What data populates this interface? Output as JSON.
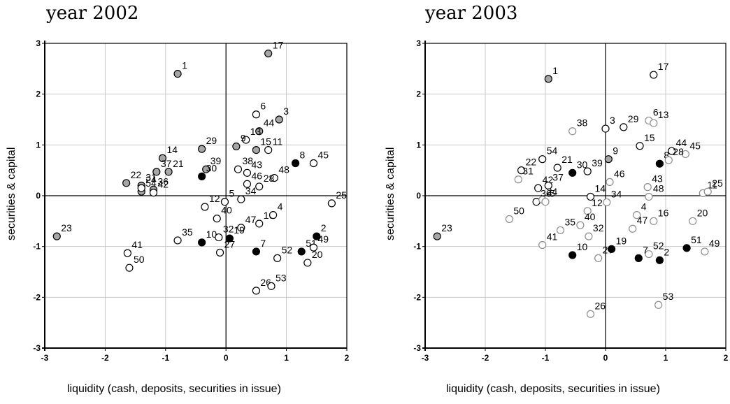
{
  "chart_data": [
    {
      "type": "scatter",
      "title": "year 2002",
      "xlabel": "liquidity (cash, deposits, securities in issue)",
      "ylabel": "securities & capital",
      "xlim": [
        -3,
        2
      ],
      "ylim": [
        -3,
        3
      ],
      "x_ticks": [
        "-3",
        "-2",
        "-1",
        "0",
        "1",
        "2"
      ],
      "y_ticks": [
        "3",
        "2",
        "1",
        "0",
        "-1",
        "-2",
        "-3"
      ],
      "grid": true,
      "colors": {
        "black": "#000000",
        "gray": "#a6a6a6",
        "white": "#ffffff"
      },
      "points": [
        {
          "label": "1",
          "x": -0.8,
          "y": 2.4,
          "fill": "gray"
        },
        {
          "label": "17",
          "x": 0.7,
          "y": 2.8,
          "fill": "gray"
        },
        {
          "label": "6",
          "x": 0.5,
          "y": 1.6,
          "fill": "white"
        },
        {
          "label": "3",
          "x": 0.88,
          "y": 1.5,
          "fill": "gray"
        },
        {
          "label": "44",
          "x": 0.55,
          "y": 1.27,
          "fill": "gray"
        },
        {
          "label": "13",
          "x": 0.33,
          "y": 1.1,
          "fill": "white"
        },
        {
          "label": "9",
          "x": 0.17,
          "y": 0.97,
          "fill": "gray"
        },
        {
          "label": "15",
          "x": 0.5,
          "y": 0.9,
          "fill": "gray"
        },
        {
          "label": "11",
          "x": 0.7,
          "y": 0.9,
          "fill": "white"
        },
        {
          "label": "8",
          "x": 1.15,
          "y": 0.64,
          "fill": "black"
        },
        {
          "label": "45",
          "x": 1.45,
          "y": 0.64,
          "fill": "white"
        },
        {
          "label": "38",
          "x": 0.2,
          "y": 0.52,
          "fill": "white"
        },
        {
          "label": "43",
          "x": 0.35,
          "y": 0.45,
          "fill": "white"
        },
        {
          "label": "48",
          "x": 0.8,
          "y": 0.35,
          "fill": "white"
        },
        {
          "label": "46",
          "x": 0.35,
          "y": 0.23,
          "fill": "white"
        },
        {
          "label": "28",
          "x": 0.55,
          "y": 0.18,
          "fill": "white"
        },
        {
          "label": "29",
          "x": -0.4,
          "y": 0.92,
          "fill": "gray"
        },
        {
          "label": "14",
          "x": -1.05,
          "y": 0.74,
          "fill": "gray"
        },
        {
          "label": "39",
          "x": -0.33,
          "y": 0.52,
          "fill": "gray"
        },
        {
          "label": "37",
          "x": -1.15,
          "y": 0.47,
          "fill": "gray"
        },
        {
          "label": "21",
          "x": -0.95,
          "y": 0.47,
          "fill": "gray"
        },
        {
          "label": "30",
          "x": -0.4,
          "y": 0.38,
          "fill": "black"
        },
        {
          "label": "22",
          "x": -1.65,
          "y": 0.25,
          "fill": "gray"
        },
        {
          "label": "31",
          "x": -1.4,
          "y": 0.2,
          "fill": "gray"
        },
        {
          "label": "36",
          "x": -1.2,
          "y": 0.12,
          "fill": "gray"
        },
        {
          "label": "54",
          "x": -1.4,
          "y": 0.08,
          "fill": "gray"
        },
        {
          "label": "24",
          "x": -1.4,
          "y": 0.15,
          "fill": "white"
        },
        {
          "label": "42",
          "x": -1.2,
          "y": 0.06,
          "fill": "white"
        },
        {
          "label": "5",
          "x": -0.02,
          "y": -0.12,
          "fill": "white"
        },
        {
          "label": "34",
          "x": 0.25,
          "y": -0.07,
          "fill": "white"
        },
        {
          "label": "12",
          "x": -0.35,
          "y": -0.22,
          "fill": "white"
        },
        {
          "label": "40",
          "x": -0.15,
          "y": -0.45,
          "fill": "white"
        },
        {
          "label": "47",
          "x": 0.25,
          "y": -0.63,
          "fill": "white"
        },
        {
          "label": "16",
          "x": 0.55,
          "y": -0.55,
          "fill": "white"
        },
        {
          "label": "4",
          "x": 0.78,
          "y": -0.38,
          "fill": "white"
        },
        {
          "label": "25",
          "x": 1.75,
          "y": -0.15,
          "fill": "white"
        },
        {
          "label": "23",
          "x": -2.8,
          "y": -0.8,
          "fill": "gray"
        },
        {
          "label": "41",
          "x": -1.63,
          "y": -1.13,
          "fill": "white"
        },
        {
          "label": "50",
          "x": -1.6,
          "y": -1.42,
          "fill": "white"
        },
        {
          "label": "35",
          "x": -0.8,
          "y": -0.88,
          "fill": "white"
        },
        {
          "label": "10",
          "x": -0.4,
          "y": -0.92,
          "fill": "black"
        },
        {
          "label": "32",
          "x": -0.12,
          "y": -0.82,
          "fill": "white"
        },
        {
          "label": "27",
          "x": -0.1,
          "y": -1.12,
          "fill": "white"
        },
        {
          "label": "19",
          "x": 0.06,
          "y": -0.84,
          "fill": "black"
        },
        {
          "label": "7",
          "x": 0.5,
          "y": -1.1,
          "fill": "black"
        },
        {
          "label": "52",
          "x": 0.85,
          "y": -1.23,
          "fill": "white"
        },
        {
          "label": "2",
          "x": 1.5,
          "y": -0.8,
          "fill": "black"
        },
        {
          "label": "51",
          "x": 1.25,
          "y": -1.1,
          "fill": "black"
        },
        {
          "label": "49",
          "x": 1.45,
          "y": -1.02,
          "fill": "white"
        },
        {
          "label": "20",
          "x": 1.35,
          "y": -1.32,
          "fill": "white"
        },
        {
          "label": "26",
          "x": 0.5,
          "y": -1.87,
          "fill": "white"
        },
        {
          "label": "53",
          "x": 0.75,
          "y": -1.78,
          "fill": "white"
        }
      ]
    },
    {
      "type": "scatter",
      "title": "year 2003",
      "xlabel": "liquidity (cash, deposits, securities in issue)",
      "ylabel": "securities & capital",
      "xlim": [
        -3,
        2
      ],
      "ylim": [
        -3,
        3
      ],
      "x_ticks": [
        "-3",
        "-2",
        "-1",
        "0",
        "1",
        "2"
      ],
      "y_ticks": [
        "3",
        "2",
        "1",
        "0",
        "-1",
        "-2",
        "-3"
      ],
      "grid": true,
      "colors": {
        "black": "#000000",
        "gray": "#a6a6a6",
        "white": "#ffffff",
        "dark_edge": "#000000",
        "gray_edge": "#8c8c8c"
      },
      "points": [
        {
          "label": "1",
          "x": -0.95,
          "y": 2.3,
          "fill": "gray",
          "edge": "dark"
        },
        {
          "label": "17",
          "x": 0.8,
          "y": 2.38,
          "fill": "white",
          "edge": "dark"
        },
        {
          "label": "3",
          "x": 0,
          "y": 1.32,
          "fill": "white",
          "edge": "dark"
        },
        {
          "label": "29",
          "x": 0.3,
          "y": 1.35,
          "fill": "white",
          "edge": "dark"
        },
        {
          "label": "38",
          "x": -0.55,
          "y": 1.27,
          "fill": "white",
          "edge": "gray"
        },
        {
          "label": "6",
          "x": 0.72,
          "y": 1.48,
          "fill": "white",
          "edge": "gray"
        },
        {
          "label": "13",
          "x": 0.8,
          "y": 1.43,
          "fill": "white",
          "edge": "gray"
        },
        {
          "label": "15",
          "x": 0.57,
          "y": 0.98,
          "fill": "white",
          "edge": "dark"
        },
        {
          "label": "44",
          "x": 1.1,
          "y": 0.88,
          "fill": "white",
          "edge": "dark"
        },
        {
          "label": "45",
          "x": 1.33,
          "y": 0.82,
          "fill": "white",
          "edge": "gray"
        },
        {
          "label": "8",
          "x": 0.9,
          "y": 0.63,
          "fill": "black",
          "edge": "dark"
        },
        {
          "label": "28",
          "x": 1.05,
          "y": 0.7,
          "fill": "white",
          "edge": "gray"
        },
        {
          "label": "9",
          "x": 0.05,
          "y": 0.72,
          "fill": "gray",
          "edge": "dark"
        },
        {
          "label": "39",
          "x": -0.3,
          "y": 0.48,
          "fill": "white",
          "edge": "dark"
        },
        {
          "label": "30",
          "x": -0.55,
          "y": 0.45,
          "fill": "black",
          "edge": "dark"
        },
        {
          "label": "21",
          "x": -0.8,
          "y": 0.55,
          "fill": "white",
          "edge": "dark"
        },
        {
          "label": "54",
          "x": -1.05,
          "y": 0.72,
          "fill": "white",
          "edge": "dark"
        },
        {
          "label": "22",
          "x": -1.4,
          "y": 0.5,
          "fill": "white",
          "edge": "dark"
        },
        {
          "label": "31",
          "x": -1.45,
          "y": 0.32,
          "fill": "white",
          "edge": "gray"
        },
        {
          "label": "42",
          "x": -1.12,
          "y": 0.15,
          "fill": "white",
          "edge": "dark"
        },
        {
          "label": "37",
          "x": -0.95,
          "y": 0.2,
          "fill": "white",
          "edge": "dark"
        },
        {
          "label": "36",
          "x": -1.15,
          "y": -0.12,
          "fill": "white",
          "edge": "dark"
        },
        {
          "label": "46",
          "x": 0.07,
          "y": 0.27,
          "fill": "white",
          "edge": "gray"
        },
        {
          "label": "43",
          "x": 0.7,
          "y": 0.17,
          "fill": "white",
          "edge": "gray"
        },
        {
          "label": "48",
          "x": 0.72,
          "y": -0.02,
          "fill": "white",
          "edge": "gray"
        },
        {
          "label": "11",
          "x": 1.62,
          "y": 0.05,
          "fill": "white",
          "edge": "gray"
        },
        {
          "label": "25",
          "x": 1.7,
          "y": 0.08,
          "fill": "white",
          "edge": "gray"
        },
        {
          "label": "14",
          "x": -0.25,
          "y": -0.02,
          "fill": "white",
          "edge": "dark"
        },
        {
          "label": "34",
          "x": 0.02,
          "y": -0.13,
          "fill": "white",
          "edge": "gray"
        },
        {
          "label": "24",
          "x": -1.05,
          "y": -0.08,
          "fill": "white",
          "edge": "gray"
        },
        {
          "label": "5",
          "x": -1.0,
          "y": -0.12,
          "fill": "white",
          "edge": "gray"
        },
        {
          "label": "50",
          "x": -1.6,
          "y": -0.46,
          "fill": "white",
          "edge": "gray"
        },
        {
          "label": "12",
          "x": -0.3,
          "y": -0.3,
          "fill": "white",
          "edge": "gray"
        },
        {
          "label": "4",
          "x": 0.52,
          "y": -0.38,
          "fill": "white",
          "edge": "gray"
        },
        {
          "label": "16",
          "x": 0.8,
          "y": -0.5,
          "fill": "white",
          "edge": "gray"
        },
        {
          "label": "20",
          "x": 1.45,
          "y": -0.5,
          "fill": "white",
          "edge": "gray"
        },
        {
          "label": "35",
          "x": -0.75,
          "y": -0.68,
          "fill": "white",
          "edge": "gray"
        },
        {
          "label": "40",
          "x": -0.42,
          "y": -0.58,
          "fill": "white",
          "edge": "gray"
        },
        {
          "label": "32",
          "x": -0.28,
          "y": -0.8,
          "fill": "white",
          "edge": "gray"
        },
        {
          "label": "47",
          "x": 0.45,
          "y": -0.65,
          "fill": "white",
          "edge": "gray"
        },
        {
          "label": "23",
          "x": -2.8,
          "y": -0.8,
          "fill": "gray",
          "edge": "dark"
        },
        {
          "label": "41",
          "x": -1.05,
          "y": -0.97,
          "fill": "white",
          "edge": "gray"
        },
        {
          "label": "10",
          "x": -0.55,
          "y": -1.17,
          "fill": "black",
          "edge": "dark"
        },
        {
          "label": "27",
          "x": -0.12,
          "y": -1.23,
          "fill": "white",
          "edge": "gray"
        },
        {
          "label": "19",
          "x": 0.1,
          "y": -1.05,
          "fill": "black",
          "edge": "dark"
        },
        {
          "label": "52",
          "x": 0.72,
          "y": -1.15,
          "fill": "white",
          "edge": "gray"
        },
        {
          "label": "7",
          "x": 0.55,
          "y": -1.23,
          "fill": "black",
          "edge": "dark"
        },
        {
          "label": "2",
          "x": 0.9,
          "y": -1.27,
          "fill": "black",
          "edge": "dark"
        },
        {
          "label": "51",
          "x": 1.35,
          "y": -1.03,
          "fill": "black",
          "edge": "dark"
        },
        {
          "label": "49",
          "x": 1.65,
          "y": -1.1,
          "fill": "white",
          "edge": "gray"
        },
        {
          "label": "26",
          "x": -0.25,
          "y": -2.33,
          "fill": "white",
          "edge": "gray"
        },
        {
          "label": "53",
          "x": 0.88,
          "y": -2.15,
          "fill": "white",
          "edge": "gray"
        }
      ]
    }
  ]
}
